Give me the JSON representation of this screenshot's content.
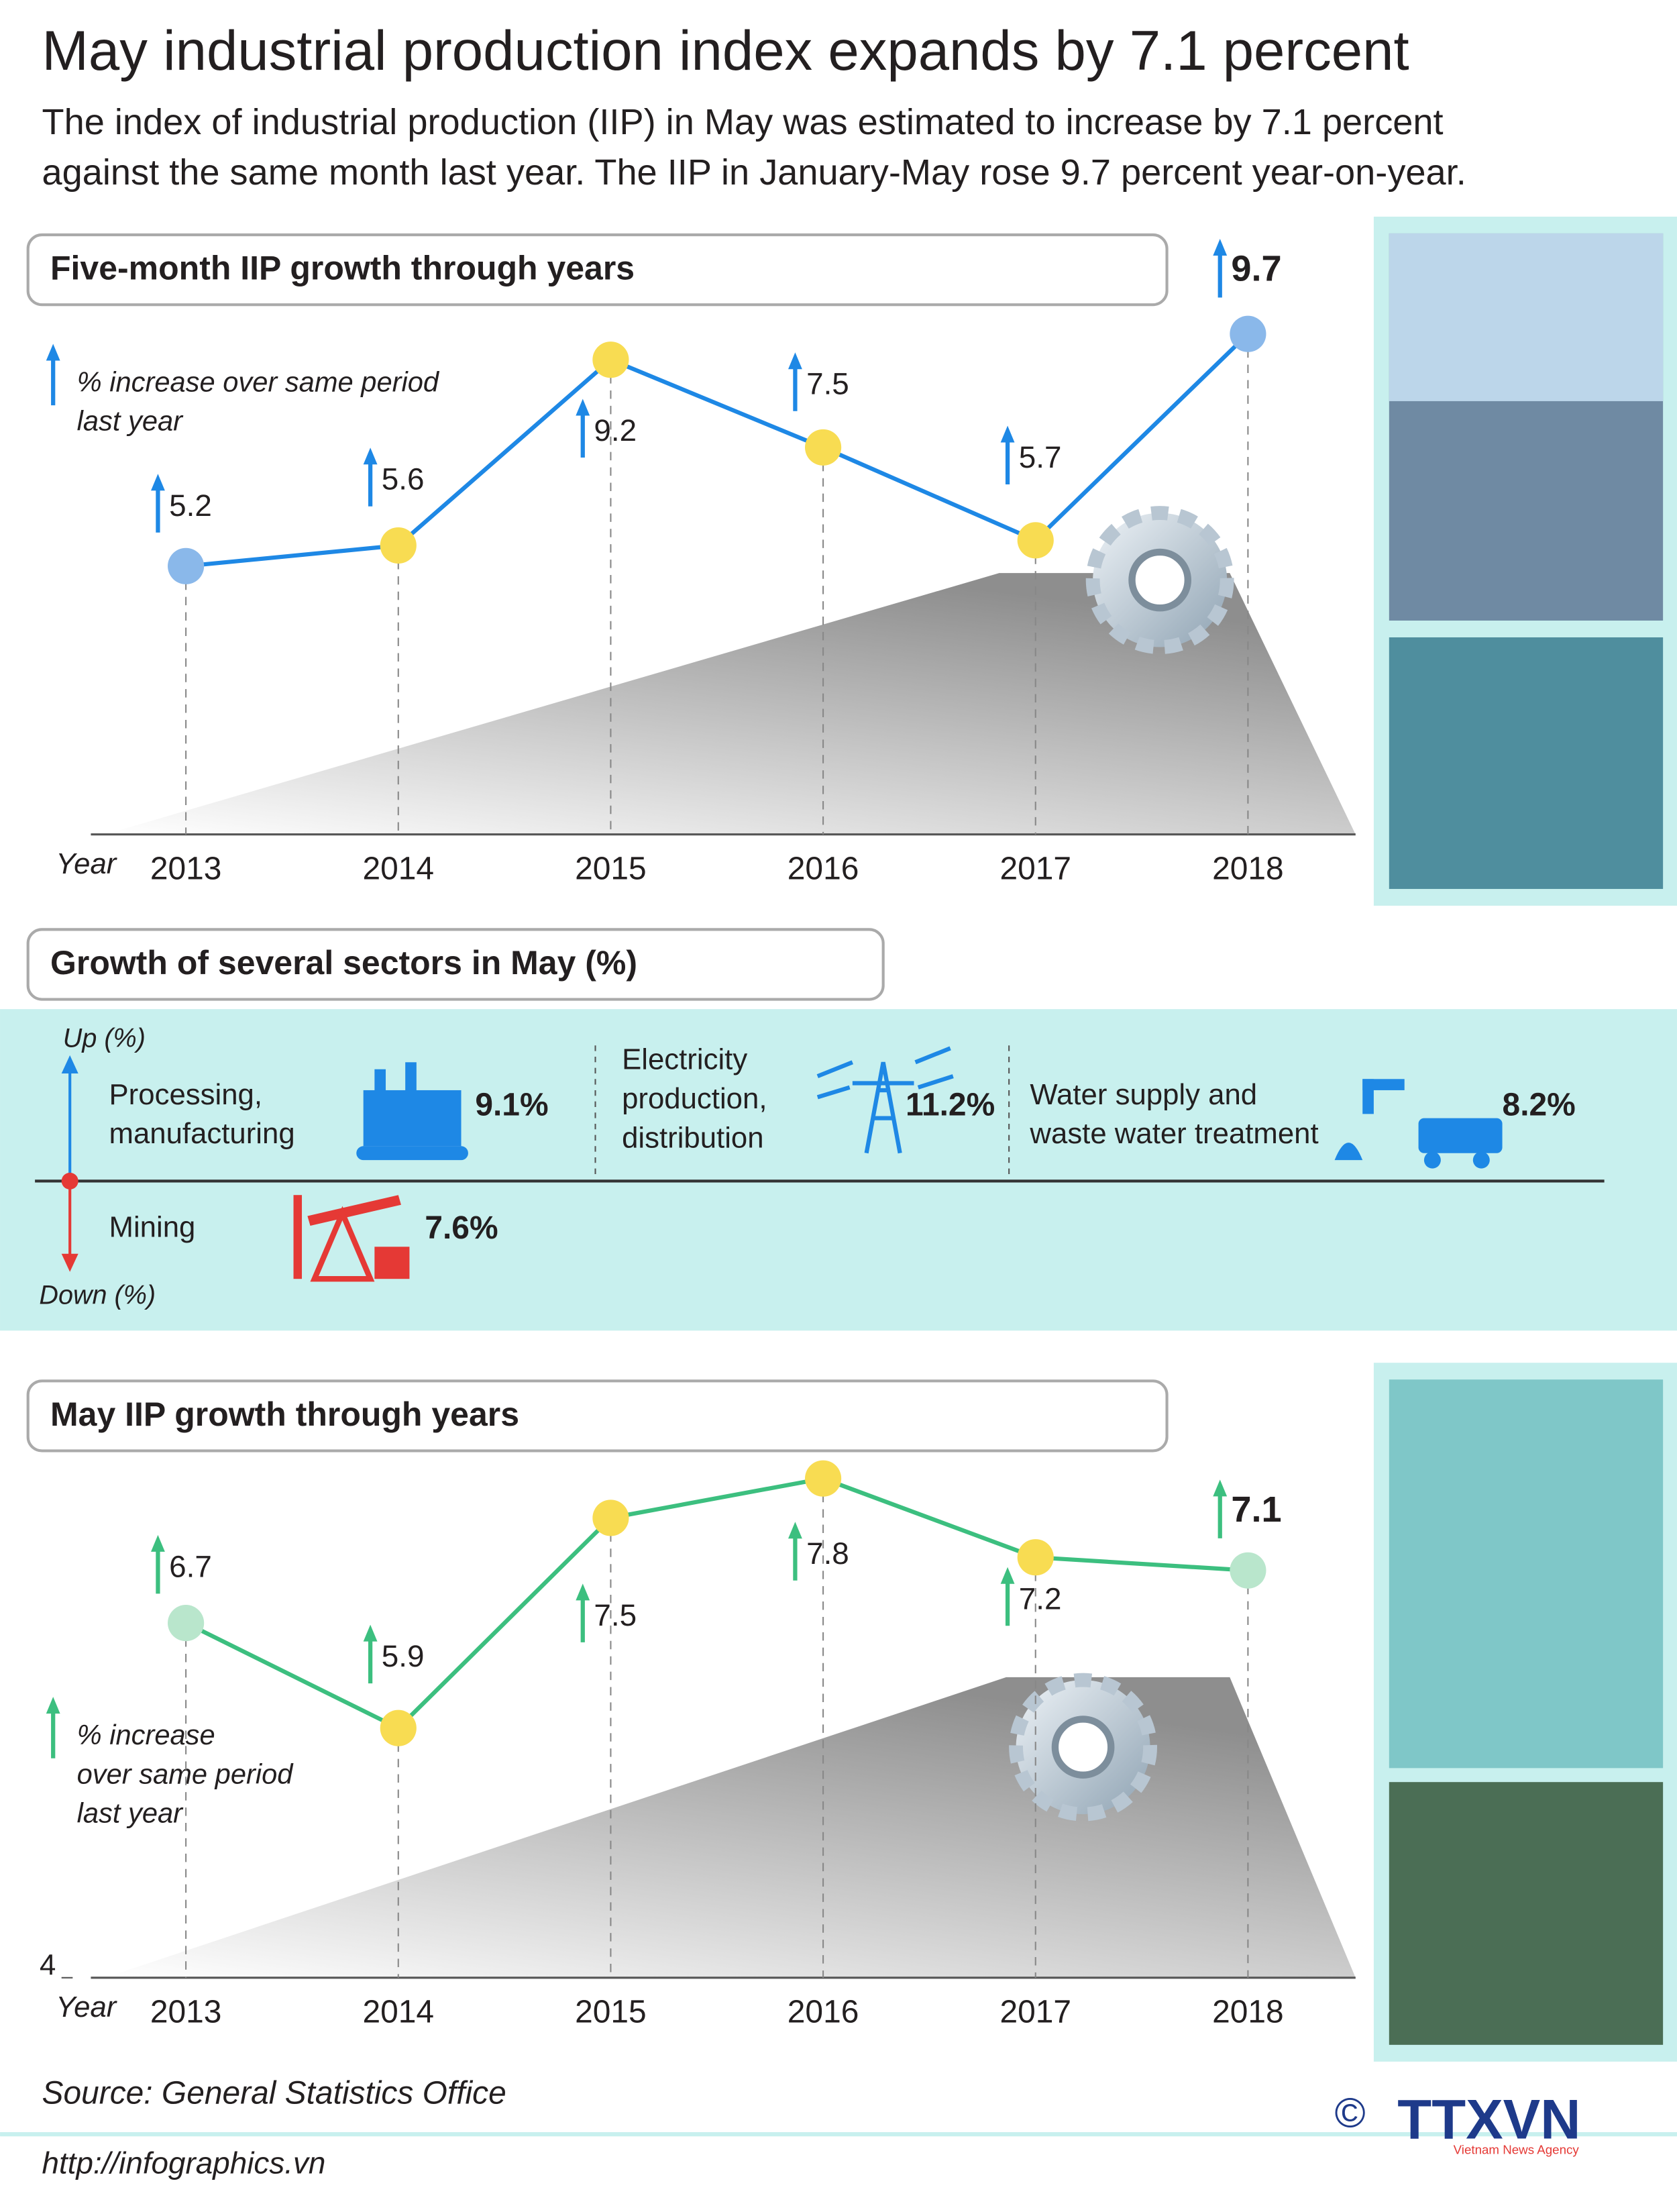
{
  "header": {
    "title": "May industrial production index expands by 7.1 percent",
    "subtitle": [
      "The index of industrial production (IIP) in May was estimated to increase by 7.1 percent",
      "against the same month last year. The IIP in January-May rose 9.7 percent year-on-year."
    ]
  },
  "chart_data": [
    {
      "type": "line",
      "title": "Five-month IIP growth through years",
      "x_label": "Year",
      "annotation": [
        "% increase over same period",
        "last year"
      ],
      "categories": [
        "2013",
        "2014",
        "2015",
        "2016",
        "2017",
        "2018"
      ],
      "series": [
        {
          "name": "Five-month IIP growth",
          "color": "#1e88e5",
          "values": [
            5.2,
            5.6,
            9.2,
            7.5,
            5.7,
            9.7
          ]
        }
      ],
      "marker_colors": [
        "#8ab8ea",
        "#f8dc52",
        "#f8dc52",
        "#f8dc52",
        "#f8dc52",
        "#8ab8ea"
      ],
      "ylim": [
        0,
        12
      ]
    },
    {
      "type": "line",
      "title": "May IIP growth through years",
      "x_label": "Year",
      "annotation": [
        "% increase",
        "over same period",
        "last year"
      ],
      "categories": [
        "2013",
        "2014",
        "2015",
        "2016",
        "2017",
        "2018"
      ],
      "series": [
        {
          "name": "May IIP growth",
          "color": "#3cbf7f",
          "values": [
            6.7,
            5.9,
            7.5,
            7.8,
            7.2,
            7.1
          ]
        }
      ],
      "marker_colors": [
        "#b9e6cc",
        "#f8dc52",
        "#f8dc52",
        "#f8dc52",
        "#f8dc52",
        "#b9e6cc"
      ],
      "ylim": [
        4,
        8.5
      ],
      "yticks": [
        4
      ]
    }
  ],
  "sectors": {
    "title": "Growth of several sectors in May (%)",
    "up_label": "Up (%)",
    "down_label": "Down (%)",
    "items": [
      {
        "name": [
          "Processing,",
          "manufacturing"
        ],
        "value": "9.1%"
      },
      {
        "name": [
          "Electricity",
          "production,",
          "distribution"
        ],
        "value": "11.2%"
      },
      {
        "name": [
          "Water supply and",
          "waste water treatment"
        ],
        "value": "8.2%"
      },
      {
        "name": [
          "Mining"
        ],
        "value": "7.6%"
      }
    ]
  },
  "footer": {
    "source": "Source: General Statistics Office",
    "url": "http://infographics.vn",
    "copyright": "©",
    "logo": "TTXVN",
    "logo_sub": "Vietnam News Agency"
  }
}
